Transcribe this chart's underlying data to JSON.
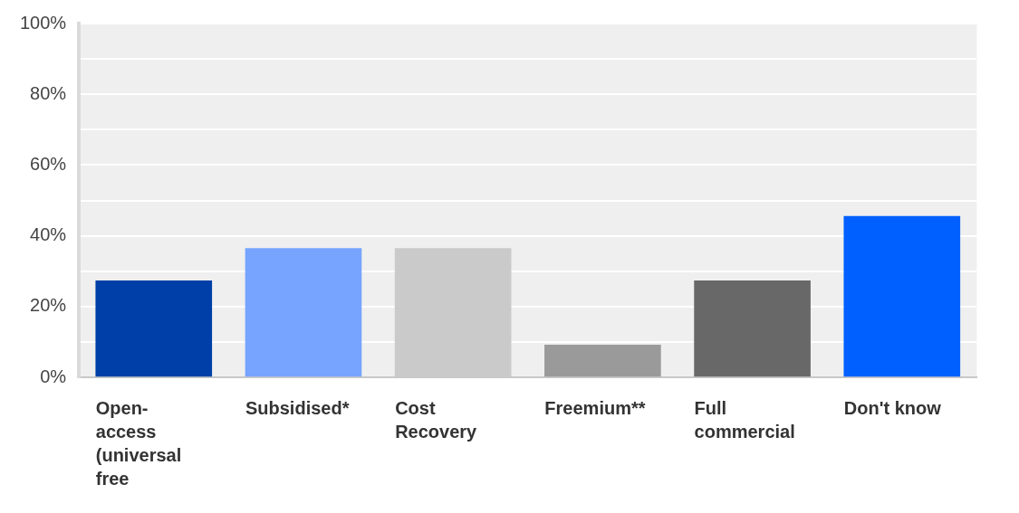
{
  "chart_data": {
    "type": "bar",
    "categories": [
      "Open-access (universal free",
      "Subsidised*",
      "Cost Recovery",
      "Freemium**",
      "Full commercial",
      "Don't know"
    ],
    "values": [
      27.3,
      36.4,
      36.4,
      9.1,
      27.3,
      45.5
    ],
    "colors": [
      "#003fa8",
      "#77a4ff",
      "#cacaca",
      "#9a9a9a",
      "#686868",
      "#0060ff"
    ],
    "ylim": [
      0,
      100
    ],
    "yticks": [
      {
        "value": 0,
        "label": "0%"
      },
      {
        "value": 10,
        "label": null
      },
      {
        "value": 20,
        "label": "20%"
      },
      {
        "value": 30,
        "label": null
      },
      {
        "value": 40,
        "label": "40%"
      },
      {
        "value": 50,
        "label": null
      },
      {
        "value": 60,
        "label": "60%"
      },
      {
        "value": 70,
        "label": null
      },
      {
        "value": 80,
        "label": "80%"
      },
      {
        "value": 90,
        "label": null
      },
      {
        "value": 100,
        "label": "100%"
      }
    ],
    "grid": "y"
  }
}
